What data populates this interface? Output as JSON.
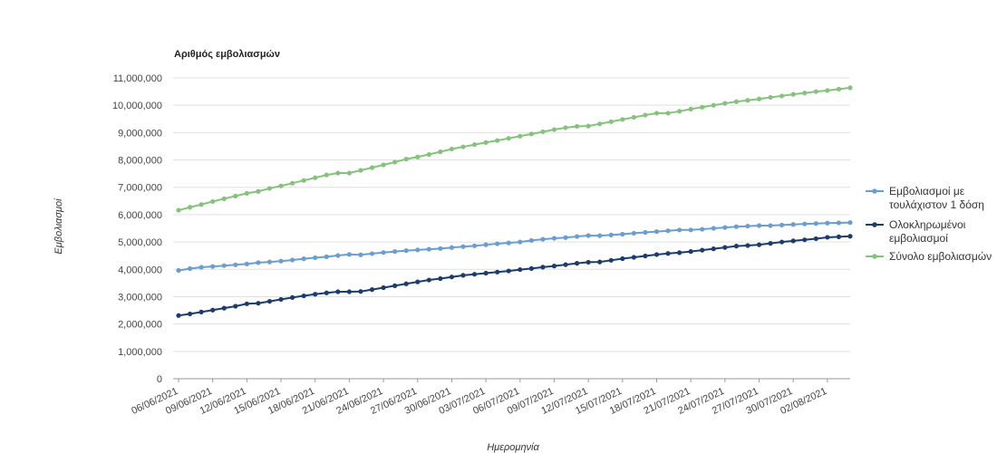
{
  "chart_data": {
    "type": "line",
    "title": "Αριθμός εμβολιασμών",
    "xlabel": "Ημερομηνία",
    "ylabel": "Εμβολιασμοί",
    "ylim": [
      0,
      11000000
    ],
    "yticks": [
      "0",
      "1,000,000",
      "2,000,000",
      "3,000,000",
      "4,000,000",
      "5,000,000",
      "6,000,000",
      "7,000,000",
      "8,000,000",
      "9,000,000",
      "10,000,000",
      "11,000,000"
    ],
    "x_tick_labels": [
      "06/06/2021",
      "09/06/2021",
      "12/06/2021",
      "15/06/2021",
      "18/06/2021",
      "21/06/2021",
      "24/06/2021",
      "27/06/2021",
      "30/06/2021",
      "03/07/2021",
      "06/07/2021",
      "09/07/2021",
      "12/07/2021",
      "15/07/2021",
      "18/07/2021",
      "21/07/2021",
      "24/07/2021",
      "27/07/2021",
      "30/07/2021",
      "02/08/2021"
    ],
    "grid": true,
    "legend_position": "right",
    "x": [
      "06/06/2021",
      "07/06/2021",
      "08/06/2021",
      "09/06/2021",
      "10/06/2021",
      "11/06/2021",
      "12/06/2021",
      "13/06/2021",
      "14/06/2021",
      "15/06/2021",
      "16/06/2021",
      "17/06/2021",
      "18/06/2021",
      "19/06/2021",
      "20/06/2021",
      "21/06/2021",
      "22/06/2021",
      "23/06/2021",
      "24/06/2021",
      "25/06/2021",
      "26/06/2021",
      "27/06/2021",
      "28/06/2021",
      "29/06/2021",
      "30/06/2021",
      "01/07/2021",
      "02/07/2021",
      "03/07/2021",
      "04/07/2021",
      "05/07/2021",
      "06/07/2021",
      "07/07/2021",
      "08/07/2021",
      "09/07/2021",
      "10/07/2021",
      "11/07/2021",
      "12/07/2021",
      "13/07/2021",
      "14/07/2021",
      "15/07/2021",
      "16/07/2021",
      "17/07/2021",
      "18/07/2021",
      "19/07/2021",
      "20/07/2021",
      "21/07/2021",
      "22/07/2021",
      "23/07/2021",
      "24/07/2021",
      "25/07/2021",
      "26/07/2021",
      "27/07/2021",
      "28/07/2021",
      "29/07/2021",
      "30/07/2021",
      "31/07/2021",
      "01/08/2021",
      "02/08/2021",
      "03/08/2021",
      "04/08/2021"
    ],
    "series": [
      {
        "name": "Εμβολιασμοί με τουλάχιστον 1 δόση",
        "color": "#6a9ed0",
        "values": [
          3960000,
          4025000,
          4075000,
          4105000,
          4135000,
          4165000,
          4195000,
          4245000,
          4270000,
          4300000,
          4340000,
          4385000,
          4425000,
          4460000,
          4505000,
          4545000,
          4530000,
          4575000,
          4615000,
          4650000,
          4685000,
          4710000,
          4735000,
          4760000,
          4795000,
          4830000,
          4860000,
          4900000,
          4935000,
          4965000,
          5000000,
          5055000,
          5100000,
          5135000,
          5160000,
          5200000,
          5235000,
          5230000,
          5255000,
          5285000,
          5320000,
          5350000,
          5380000,
          5410000,
          5440000,
          5440000,
          5465000,
          5500000,
          5530000,
          5560000,
          5580000,
          5600000,
          5600000,
          5620000,
          5640000,
          5660000,
          5675000,
          5690000,
          5700000,
          5710000
        ]
      },
      {
        "name": "Ολοκληρωμένοι εμβολιασμοί",
        "color": "#1c3c6c",
        "values": [
          2310000,
          2370000,
          2440000,
          2510000,
          2580000,
          2650000,
          2740000,
          2760000,
          2830000,
          2900000,
          2970000,
          3030000,
          3090000,
          3140000,
          3180000,
          3180000,
          3190000,
          3260000,
          3330000,
          3400000,
          3470000,
          3540000,
          3610000,
          3660000,
          3720000,
          3780000,
          3820000,
          3860000,
          3900000,
          3940000,
          3990000,
          4030000,
          4080000,
          4120000,
          4170000,
          4220000,
          4260000,
          4270000,
          4330000,
          4390000,
          4440000,
          4490000,
          4540000,
          4580000,
          4610000,
          4650000,
          4700000,
          4750000,
          4800000,
          4850000,
          4870000,
          4900000,
          4950000,
          5000000,
          5040000,
          5080000,
          5120000,
          5170000,
          5190000,
          5210000
        ]
      },
      {
        "name": "Σύνολο εμβολιασμών",
        "color": "#85c27c",
        "values": [
          6160000,
          6270000,
          6370000,
          6480000,
          6580000,
          6680000,
          6780000,
          6850000,
          6960000,
          7050000,
          7150000,
          7250000,
          7350000,
          7450000,
          7520000,
          7520000,
          7620000,
          7720000,
          7820000,
          7920000,
          8030000,
          8110000,
          8200000,
          8300000,
          8400000,
          8480000,
          8560000,
          8640000,
          8710000,
          8790000,
          8870000,
          8950000,
          9030000,
          9110000,
          9180000,
          9230000,
          9240000,
          9320000,
          9400000,
          9480000,
          9560000,
          9640000,
          9710000,
          9710000,
          9780000,
          9860000,
          9930000,
          10000000,
          10070000,
          10130000,
          10180000,
          10230000,
          10290000,
          10340000,
          10400000,
          10450000,
          10500000,
          10540000,
          10590000,
          10640000
        ]
      }
    ]
  },
  "legend": {
    "items": [
      {
        "lines": [
          "Εμβολιασμοί με",
          "τουλάχιστον 1 δόση"
        ],
        "color": "#6a9ed0"
      },
      {
        "lines": [
          "Ολοκληρωμένοι",
          "εμβολιασμοί"
        ],
        "color": "#1c3c6c"
      },
      {
        "lines": [
          "Σύνολο εμβολιασμών"
        ],
        "color": "#85c27c"
      }
    ]
  }
}
